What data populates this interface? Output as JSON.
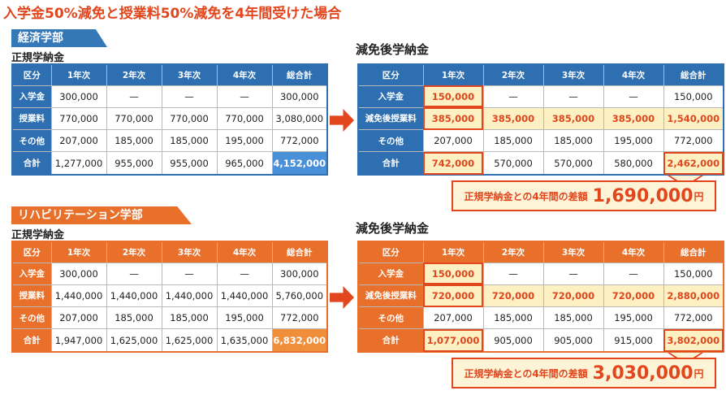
{
  "title": "入学金50%減免と授業料50%減免を4年間受けた場合",
  "headers": [
    "区分",
    "1年次",
    "2年次",
    "3年次",
    "4年次",
    "総合計"
  ],
  "regular_label": "正規学納金",
  "after_label": "減免後学納金",
  "economics": {
    "dept": "経済学部",
    "regular_rows": [
      [
        "入学金",
        "300,000",
        "—",
        "—",
        "—",
        "300,000"
      ],
      [
        "授業料",
        "770,000",
        "770,000",
        "770,000",
        "770,000",
        "3,080,000"
      ],
      [
        "その他",
        "207,000",
        "185,000",
        "185,000",
        "195,000",
        "772,000"
      ],
      [
        "合計",
        "1,277,000",
        "955,000",
        "955,000",
        "965,000",
        "4,152,000"
      ]
    ],
    "after_rows": [
      [
        "入学金",
        "150,000",
        "—",
        "—",
        "—",
        "150,000"
      ],
      [
        "減免後授業料",
        "385,000",
        "385,000",
        "385,000",
        "385,000",
        "1,540,000"
      ],
      [
        "その他",
        "207,000",
        "185,000",
        "185,000",
        "195,000",
        "772,000"
      ],
      [
        "合計",
        "742,000",
        "570,000",
        "570,000",
        "580,000",
        "2,462,000"
      ]
    ],
    "diff_text": "正規学納金との4年間の差額",
    "diff_amount": "1,690,000",
    "diff_unit": "円"
  },
  "rehab": {
    "dept": "リハビリテーション学部",
    "regular_rows": [
      [
        "入学金",
        "300,000",
        "—",
        "—",
        "—",
        "300,000"
      ],
      [
        "授業料",
        "1,440,000",
        "1,440,000",
        "1,440,000",
        "1,440,000",
        "5,760,000"
      ],
      [
        "その他",
        "207,000",
        "185,000",
        "185,000",
        "195,000",
        "772,000"
      ],
      [
        "合計",
        "1,947,000",
        "1,625,000",
        "1,625,000",
        "1,635,000",
        "6,832,000"
      ]
    ],
    "after_rows": [
      [
        "入学金",
        "150,000",
        "—",
        "—",
        "—",
        "150,000"
      ],
      [
        "減免後授業料",
        "720,000",
        "720,000",
        "720,000",
        "720,000",
        "2,880,000"
      ],
      [
        "その他",
        "207,000",
        "185,000",
        "185,000",
        "195,000",
        "772,000"
      ],
      [
        "合計",
        "1,077,000",
        "905,000",
        "905,000",
        "915,000",
        "3,802,000"
      ]
    ],
    "diff_text": "正規学納金との4年間の差額",
    "diff_amount": "3,030,000",
    "diff_unit": "円"
  }
}
